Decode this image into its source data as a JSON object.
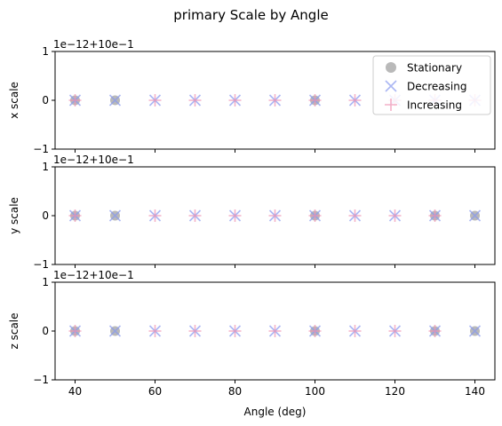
{
  "chart_data": {
    "type": "scatter",
    "title": "primary Scale by Angle",
    "xlabel": "Angle (deg)",
    "xlim": [
      35,
      145
    ],
    "x_ticks": [
      40,
      60,
      80,
      100,
      120,
      140
    ],
    "ylim": [
      -1,
      1
    ],
    "y_ticks": [
      -1,
      0,
      1
    ],
    "offset_label": "1e−12+10e−1",
    "grid": false,
    "legend_placement": "top-right",
    "colors": {
      "Stationary": "#808080",
      "Decreasing": "#8899ee",
      "Increasing": "#f090b0"
    },
    "legend": [
      {
        "name": "Stationary",
        "marker": "circle"
      },
      {
        "name": "Decreasing",
        "marker": "x"
      },
      {
        "name": "Increasing",
        "marker": "plus"
      }
    ],
    "panels": [
      {
        "ylabel": "x scale",
        "series": [
          {
            "name": "Stationary",
            "x": [
              40,
              50,
              100
            ],
            "y": [
              0,
              0,
              0
            ]
          },
          {
            "name": "Decreasing",
            "x": [
              40,
              50,
              60,
              70,
              80,
              90,
              100,
              110,
              120,
              130,
              140
            ],
            "y": [
              0,
              0,
              0,
              0,
              0,
              0,
              0,
              0,
              0,
              0,
              0
            ]
          },
          {
            "name": "Increasing",
            "x": [
              40,
              60,
              70,
              80,
              90,
              100,
              110,
              120,
              130,
              140
            ],
            "y": [
              0,
              0,
              0,
              0,
              0,
              0,
              0,
              0,
              0,
              0
            ]
          }
        ]
      },
      {
        "ylabel": "y scale",
        "series": [
          {
            "name": "Stationary",
            "x": [
              40,
              50,
              100,
              130,
              140
            ],
            "y": [
              0,
              0,
              0,
              0,
              0
            ]
          },
          {
            "name": "Decreasing",
            "x": [
              40,
              50,
              60,
              70,
              80,
              90,
              100,
              110,
              120,
              130,
              140
            ],
            "y": [
              0,
              0,
              0,
              0,
              0,
              0,
              0,
              0,
              0,
              0,
              0
            ]
          },
          {
            "name": "Increasing",
            "x": [
              40,
              60,
              70,
              80,
              90,
              100,
              110,
              120,
              130
            ],
            "y": [
              0,
              0,
              0,
              0,
              0,
              0,
              0,
              0,
              0
            ]
          }
        ]
      },
      {
        "ylabel": "z scale",
        "series": [
          {
            "name": "Stationary",
            "x": [
              40,
              50,
              100,
              130,
              140
            ],
            "y": [
              0,
              0,
              0,
              0,
              0
            ]
          },
          {
            "name": "Decreasing",
            "x": [
              40,
              50,
              60,
              70,
              80,
              90,
              100,
              110,
              120,
              130,
              140
            ],
            "y": [
              0,
              0,
              0,
              0,
              0,
              0,
              0,
              0,
              0,
              0,
              0
            ]
          },
          {
            "name": "Increasing",
            "x": [
              40,
              60,
              70,
              80,
              90,
              100,
              110,
              120,
              130
            ],
            "y": [
              0,
              0,
              0,
              0,
              0,
              0,
              0,
              0,
              0
            ]
          }
        ]
      }
    ]
  }
}
